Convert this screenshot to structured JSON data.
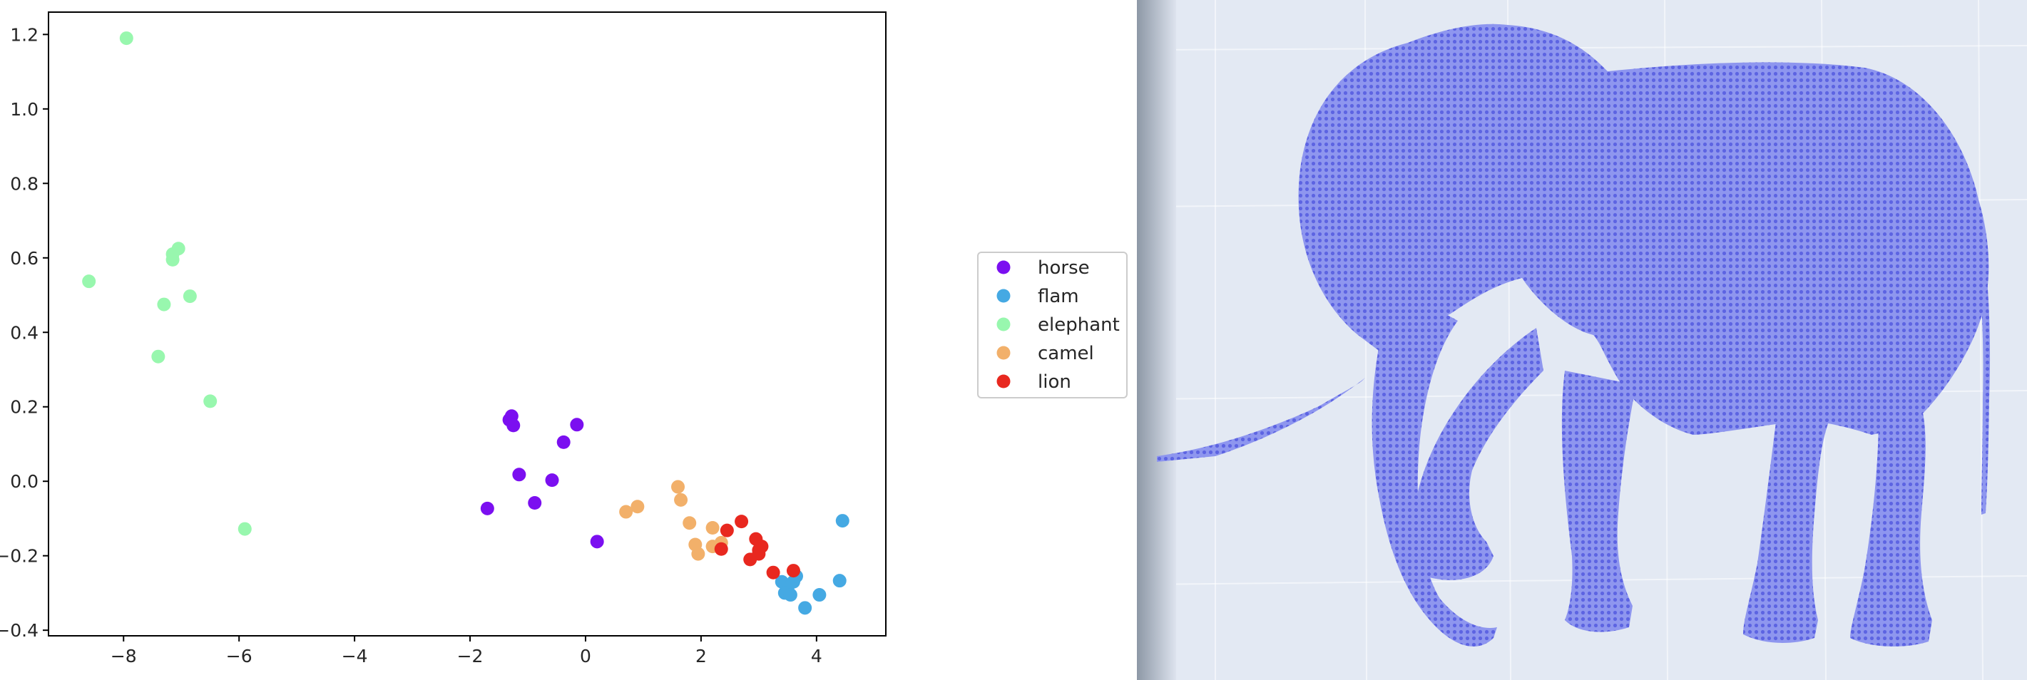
{
  "chart_data": {
    "type": "scatter",
    "title": "",
    "xlabel": "",
    "ylabel": "",
    "xlim": [
      -9.3,
      5.2
    ],
    "ylim": [
      -0.415,
      1.26
    ],
    "xticks": [
      -8,
      -6,
      -4,
      -2,
      0,
      2,
      4
    ],
    "yticks": [
      -0.4,
      -0.2,
      0.0,
      0.2,
      0.4,
      0.6,
      0.8,
      1.0,
      1.2
    ],
    "xtick_labels": [
      "−8",
      "−6",
      "−4",
      "−2",
      "0",
      "2",
      "4"
    ],
    "ytick_labels": [
      "−0.4",
      "−0.2",
      "0.0",
      "0.2",
      "0.4",
      "0.6",
      "0.8",
      "1.0",
      "1.2"
    ],
    "grid": false,
    "legend_position": "right",
    "series": [
      {
        "name": "horse",
        "color": "#7b0ff0",
        "points": [
          [
            -1.32,
            0.165
          ],
          [
            -1.28,
            0.175
          ],
          [
            -1.25,
            0.15
          ],
          [
            -0.15,
            0.152
          ],
          [
            -0.38,
            0.105
          ],
          [
            -1.15,
            0.018
          ],
          [
            -0.58,
            0.003
          ],
          [
            -1.7,
            -0.073
          ],
          [
            -0.88,
            -0.058
          ],
          [
            0.2,
            -0.162
          ]
        ]
      },
      {
        "name": "flam",
        "color": "#45a9e3",
        "points": [
          [
            4.45,
            -0.106
          ],
          [
            3.4,
            -0.27
          ],
          [
            3.5,
            -0.285
          ],
          [
            3.6,
            -0.27
          ],
          [
            3.65,
            -0.255
          ],
          [
            3.45,
            -0.3
          ],
          [
            3.55,
            -0.305
          ],
          [
            4.05,
            -0.305
          ],
          [
            4.4,
            -0.267
          ],
          [
            3.8,
            -0.34
          ]
        ]
      },
      {
        "name": "elephant",
        "color": "#98f7ae",
        "points": [
          [
            -7.95,
            1.19
          ],
          [
            -8.6,
            0.537
          ],
          [
            -7.15,
            0.595
          ],
          [
            -7.15,
            0.61
          ],
          [
            -7.05,
            0.625
          ],
          [
            -6.85,
            0.497
          ],
          [
            -7.3,
            0.475
          ],
          [
            -7.4,
            0.335
          ],
          [
            -6.5,
            0.215
          ],
          [
            -5.9,
            -0.128
          ]
        ]
      },
      {
        "name": "camel",
        "color": "#f2b06a",
        "points": [
          [
            1.6,
            -0.015
          ],
          [
            1.65,
            -0.05
          ],
          [
            0.9,
            -0.068
          ],
          [
            0.7,
            -0.082
          ],
          [
            1.8,
            -0.112
          ],
          [
            2.2,
            -0.125
          ],
          [
            1.9,
            -0.17
          ],
          [
            2.2,
            -0.175
          ],
          [
            2.35,
            -0.165
          ],
          [
            1.95,
            -0.195
          ]
        ]
      },
      {
        "name": "lion",
        "color": "#e8281f",
        "points": [
          [
            2.7,
            -0.108
          ],
          [
            2.45,
            -0.132
          ],
          [
            2.95,
            -0.155
          ],
          [
            3.05,
            -0.175
          ],
          [
            2.35,
            -0.182
          ],
          [
            3.0,
            -0.195
          ],
          [
            2.85,
            -0.21
          ],
          [
            3.25,
            -0.245
          ],
          [
            3.6,
            -0.24
          ],
          [
            3.0,
            -0.185
          ]
        ]
      }
    ]
  },
  "render_panel": {
    "point_color": "#6b72ea",
    "background_color": "#e3e9f3"
  }
}
